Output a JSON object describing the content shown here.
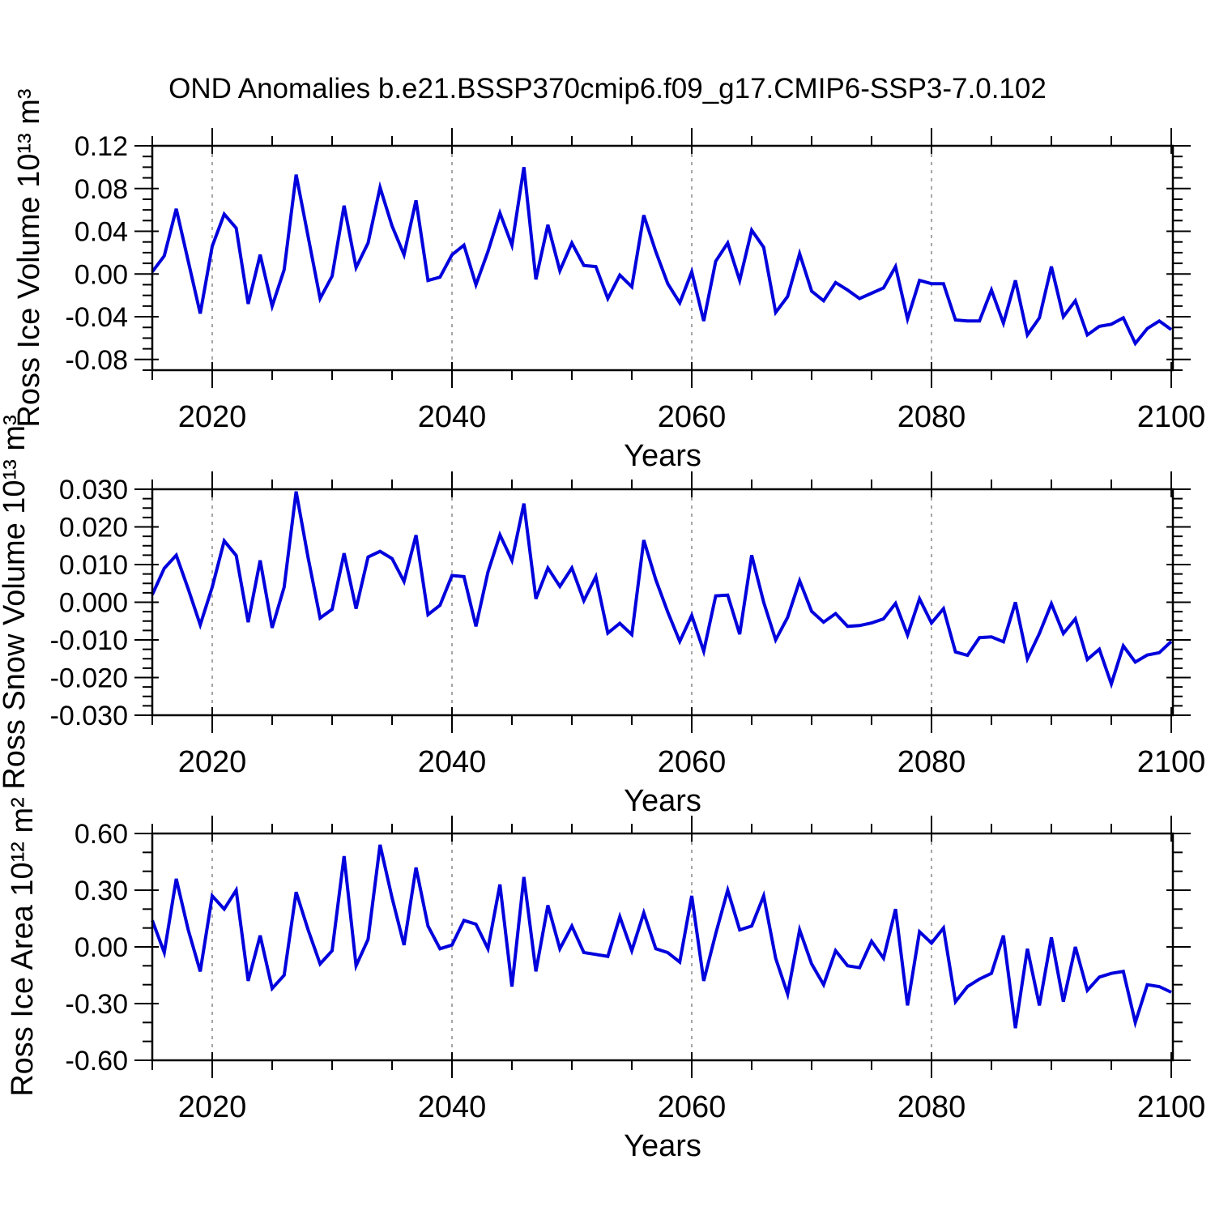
{
  "title": "OND Anomalies b.e21.BSSP370cmip6.f09_g17.CMIP6-SSP3-7.0.102",
  "colors": {
    "line": "#0000dd",
    "frame": "#000000",
    "grid": "#888888",
    "background": "#ffffff"
  },
  "x_axis": {
    "label": "Years",
    "start": 2015,
    "end": 2100,
    "major_ticks": [
      2020,
      2040,
      2060,
      2080,
      2100
    ],
    "major_tick_labels": [
      "2020",
      "2040",
      "2060",
      "2080",
      "2100"
    ],
    "minor_step": 5,
    "dashed_gridlines_at": [
      2020,
      2040,
      2060,
      2080
    ]
  },
  "years": [
    2015,
    2016,
    2017,
    2018,
    2019,
    2020,
    2021,
    2022,
    2023,
    2024,
    2025,
    2026,
    2027,
    2028,
    2029,
    2030,
    2031,
    2032,
    2033,
    2034,
    2035,
    2036,
    2037,
    2038,
    2039,
    2040,
    2041,
    2042,
    2043,
    2044,
    2045,
    2046,
    2047,
    2048,
    2049,
    2050,
    2051,
    2052,
    2053,
    2054,
    2055,
    2056,
    2057,
    2058,
    2059,
    2060,
    2061,
    2062,
    2063,
    2064,
    2065,
    2066,
    2067,
    2068,
    2069,
    2070,
    2071,
    2072,
    2073,
    2074,
    2075,
    2076,
    2077,
    2078,
    2079,
    2080,
    2081,
    2082,
    2083,
    2084,
    2085,
    2086,
    2087,
    2088,
    2089,
    2090,
    2091,
    2092,
    2093,
    2094,
    2095,
    2096,
    2097,
    2098,
    2099,
    2100
  ],
  "chart_data": [
    {
      "type": "line",
      "name": "ross-ice-volume",
      "ylabel": "Ross Ice Volume 10¹³ m³",
      "xlabel": "Years",
      "ylim": [
        -0.09,
        0.12
      ],
      "y_major_ticks": [
        0.12,
        0.08,
        0.04,
        0.0,
        -0.04,
        -0.08
      ],
      "y_tick_labels": [
        "0.12",
        "0.08",
        "0.04",
        "0.00",
        "-0.04",
        "-0.08"
      ],
      "y_minor_step": 0.01,
      "grid": "vertical-dashed",
      "legend": "none",
      "values": [
        0.002,
        0.017,
        0.061,
        0.012,
        -0.037,
        0.026,
        0.056,
        0.043,
        -0.028,
        0.018,
        -0.03,
        0.004,
        0.093,
        0.035,
        -0.023,
        -0.002,
        0.064,
        0.006,
        0.029,
        0.081,
        0.045,
        0.018,
        0.069,
        -0.006,
        -0.003,
        0.018,
        0.027,
        -0.01,
        0.021,
        0.057,
        0.027,
        0.1,
        -0.005,
        0.046,
        0.003,
        0.029,
        0.008,
        0.007,
        -0.023,
        -0.001,
        -0.012,
        0.055,
        0.021,
        -0.009,
        -0.027,
        0.002,
        -0.044,
        0.012,
        0.029,
        -0.006,
        0.041,
        0.025,
        -0.036,
        -0.021,
        0.019,
        -0.016,
        -0.025,
        -0.008,
        -0.015,
        -0.023,
        -0.018,
        -0.013,
        0.007,
        -0.042,
        -0.006,
        -0.009,
        -0.009,
        -0.043,
        -0.044,
        -0.044,
        -0.015,
        -0.046,
        -0.006,
        -0.057,
        -0.041,
        0.007,
        -0.04,
        -0.025,
        -0.057,
        -0.049,
        -0.047,
        -0.041,
        -0.065,
        -0.051,
        -0.044,
        -0.052
      ]
    },
    {
      "type": "line",
      "name": "ross-snow-volume",
      "ylabel": "Ross Snow Volume 10¹³ m³",
      "xlabel": "Years",
      "ylim": [
        -0.03,
        0.03
      ],
      "y_major_ticks": [
        0.03,
        0.02,
        0.01,
        0.0,
        -0.01,
        -0.02,
        -0.03
      ],
      "y_tick_labels": [
        "0.030",
        "0.020",
        "0.010",
        "0.000",
        "-0.010",
        "-0.020",
        "-0.030"
      ],
      "y_minor_step": 0.0025,
      "grid": "vertical-dashed",
      "legend": "none",
      "values": [
        0.002,
        0.009,
        0.0125,
        0.0035,
        -0.006,
        0.004,
        0.0163,
        0.0124,
        -0.0053,
        0.0111,
        -0.0068,
        0.004,
        0.0294,
        0.0118,
        -0.0042,
        -0.0019,
        0.013,
        -0.0017,
        0.012,
        0.0135,
        0.0116,
        0.0055,
        0.0178,
        -0.0033,
        -0.0008,
        0.0071,
        0.0068,
        -0.0064,
        0.008,
        0.0179,
        0.0111,
        0.0262,
        0.0009,
        0.0091,
        0.0042,
        0.0091,
        0.0004,
        0.0068,
        -0.0082,
        -0.0056,
        -0.0086,
        0.0165,
        0.006,
        -0.0026,
        -0.0104,
        -0.0035,
        -0.013,
        0.0017,
        0.0019,
        -0.0085,
        0.0125,
        0.0,
        -0.01,
        -0.004,
        0.0057,
        -0.0024,
        -0.0053,
        -0.003,
        -0.0064,
        -0.0062,
        -0.0055,
        -0.0044,
        -0.0003,
        -0.0087,
        0.0009,
        -0.0055,
        -0.0017,
        -0.0132,
        -0.0141,
        -0.0094,
        -0.0092,
        -0.0105,
        0.0,
        -0.015,
        -0.0083,
        -0.0004,
        -0.0083,
        -0.0044,
        -0.0152,
        -0.0125,
        -0.0217,
        -0.0116,
        -0.0159,
        -0.014,
        -0.0134,
        -0.0104
      ]
    },
    {
      "type": "line",
      "name": "ross-ice-area",
      "ylabel": "Ross Ice Area 10¹² m²",
      "xlabel": "Years",
      "ylim": [
        -0.6,
        0.6
      ],
      "y_major_ticks": [
        0.6,
        0.3,
        0.0,
        -0.3,
        -0.6
      ],
      "y_tick_labels": [
        "0.60",
        "0.30",
        "0.00",
        "-0.30",
        "-0.60"
      ],
      "y_minor_step": 0.1,
      "grid": "vertical-dashed",
      "legend": "none",
      "values": [
        0.14,
        -0.03,
        0.36,
        0.09,
        -0.13,
        0.27,
        0.2,
        0.3,
        -0.18,
        0.06,
        -0.22,
        -0.15,
        0.29,
        0.09,
        -0.09,
        -0.02,
        0.48,
        -0.1,
        0.04,
        0.54,
        0.26,
        0.01,
        0.42,
        0.11,
        -0.01,
        0.01,
        0.14,
        0.12,
        -0.01,
        0.33,
        -0.21,
        0.37,
        -0.13,
        0.22,
        -0.01,
        0.11,
        -0.03,
        -0.04,
        -0.05,
        0.16,
        -0.02,
        0.18,
        -0.01,
        -0.03,
        -0.08,
        0.27,
        -0.18,
        0.07,
        0.3,
        0.09,
        0.11,
        0.27,
        -0.06,
        -0.25,
        0.09,
        -0.09,
        -0.2,
        -0.02,
        -0.1,
        -0.11,
        0.03,
        -0.06,
        0.2,
        -0.31,
        0.08,
        0.02,
        0.1,
        -0.29,
        -0.21,
        -0.17,
        -0.14,
        0.06,
        -0.43,
        -0.01,
        -0.31,
        0.05,
        -0.29,
        0.0,
        -0.23,
        -0.16,
        -0.14,
        -0.13,
        -0.4,
        -0.2,
        -0.21,
        -0.24
      ]
    }
  ]
}
